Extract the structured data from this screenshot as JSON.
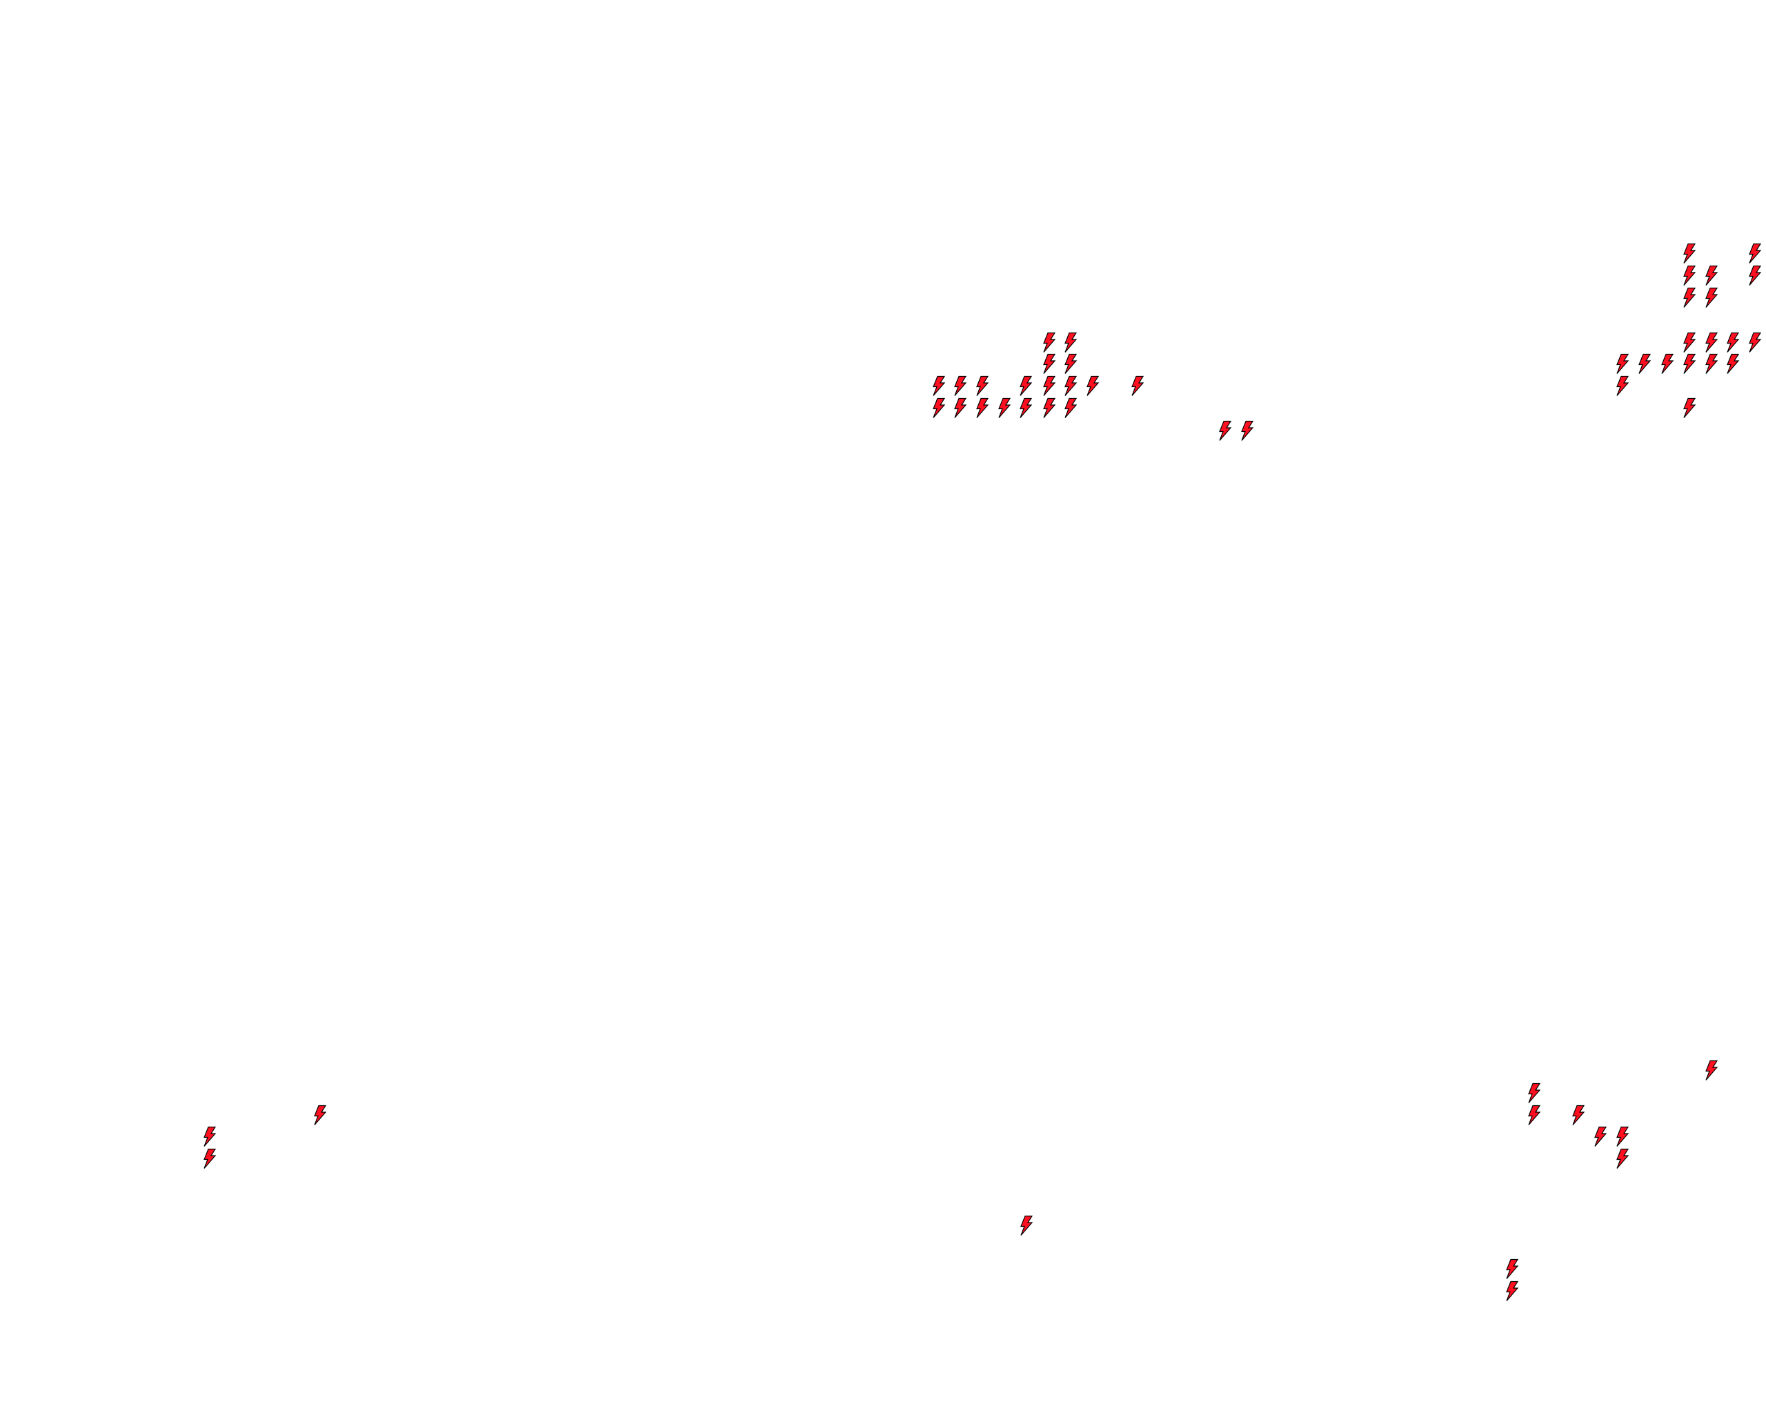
{
  "map": {
    "background_color": "#ffffff",
    "marker": {
      "icon": "lightning-bolt-icon",
      "fill_color": "#ff1020",
      "stroke_color": "#000000"
    }
  }
}
